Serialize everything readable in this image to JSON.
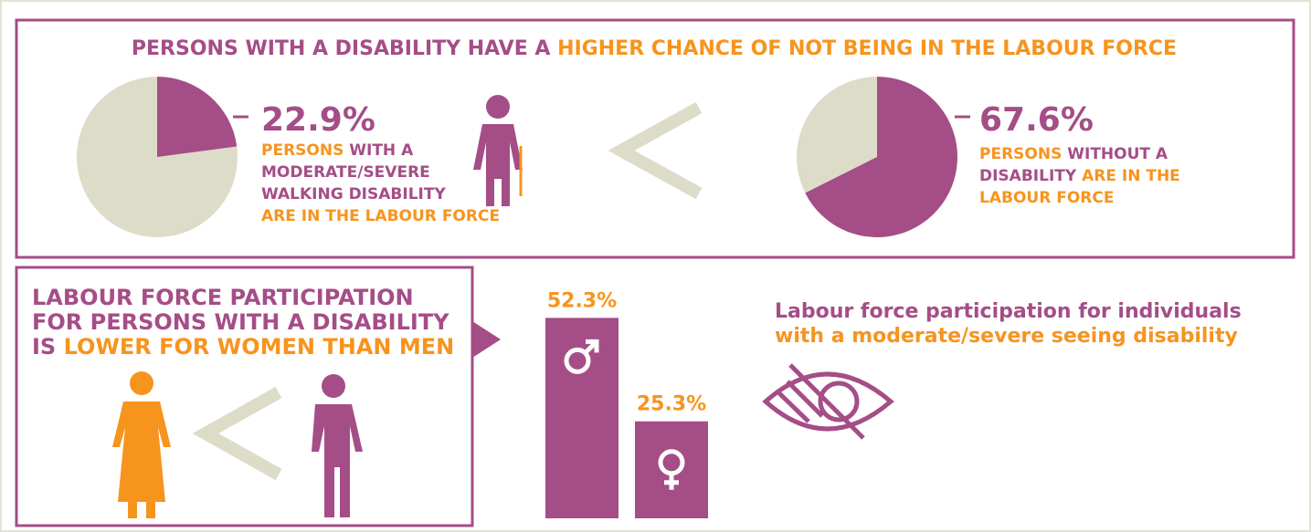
{
  "top": {
    "title": [
      {
        "text": "PERSONS WITH A DISABILITY HAVE A ",
        "color": "#a54d87"
      },
      {
        "text": "HIGHER CHANCE OF NOT BEING IN THE LABOUR FORCE",
        "color": "#f7941d"
      }
    ],
    "pies": [
      {
        "value": 22.9,
        "value_label": "22.9%",
        "color": "#a54d87",
        "rest_color": "#dcdcc8",
        "lines": [
          [
            {
              "text": "PERSONS",
              "color": "#f7941d"
            },
            {
              "text": " WITH A",
              "color": "#a54d87"
            }
          ],
          [
            {
              "text": "MODERATE/SEVERE",
              "color": "#a54d87"
            }
          ],
          [
            {
              "text": "WALKING DISABILITY",
              "color": "#a54d87"
            }
          ],
          [
            {
              "text": "ARE IN THE LABOUR FORCE",
              "color": "#f7941d"
            }
          ]
        ]
      },
      {
        "value": 67.6,
        "value_label": "67.6%",
        "color": "#a54d87",
        "rest_color": "#dcdcc8",
        "lines": [
          [
            {
              "text": "PERSONS",
              "color": "#f7941d"
            },
            {
              "text": " WITHOUT A",
              "color": "#a54d87"
            }
          ],
          [
            {
              "text": "DISABILITY",
              "color": "#a54d87"
            },
            {
              "text": " ARE IN THE",
              "color": "#f7941d"
            }
          ],
          [
            {
              "text": "LABOUR FORCE",
              "color": "#f7941d"
            }
          ]
        ]
      }
    ]
  },
  "gender": {
    "lines": [
      [
        {
          "text": "LABOUR FORCE PARTICIPATION",
          "color": "#a54d87"
        }
      ],
      [
        {
          "text": "FOR PERSONS WITH A DISABILITY",
          "color": "#a54d87"
        }
      ],
      [
        {
          "text": "IS ",
          "color": "#a54d87"
        },
        {
          "text": "LOWER FOR WOMEN THAN MEN",
          "color": "#f7941d"
        }
      ]
    ],
    "bars": {
      "values": [
        52.3,
        25.3
      ],
      "value_labels": [
        "52.3%",
        "25.3%"
      ],
      "color": "#a54d87",
      "label_color": "#f7941d"
    }
  },
  "seeing": {
    "lines": [
      [
        {
          "text": "Labour force participation for individuals",
          "color": "#a54d87"
        }
      ],
      [
        {
          "text": "with a moderate/severe seeing disability",
          "color": "#f7941d"
        }
      ]
    ]
  }
}
